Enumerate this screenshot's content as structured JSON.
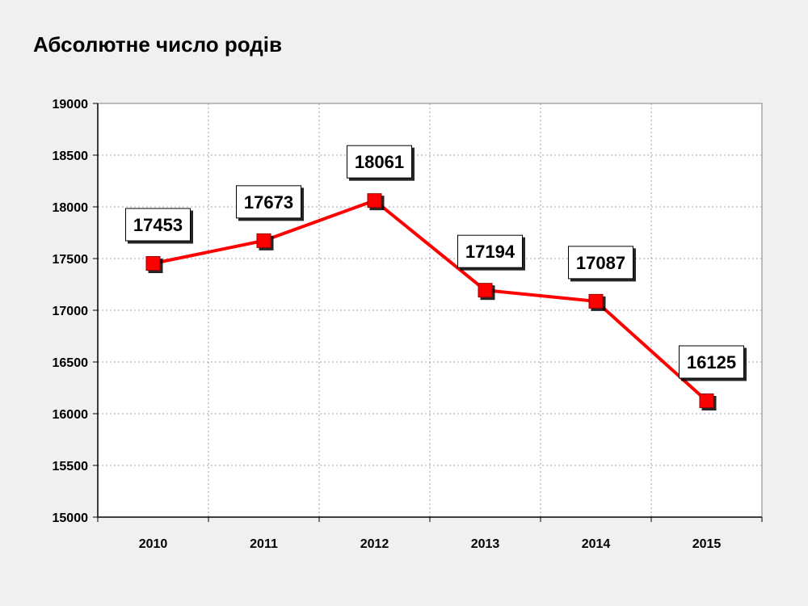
{
  "slide": {
    "title": "Абсолютне число родів"
  },
  "colors": {
    "background": "#f0f0f0",
    "plot_area": "#ffffff",
    "series_line": "#ff0000",
    "marker": "#ff0000",
    "grid": "#a0a0a0"
  },
  "chart_data": {
    "type": "line",
    "title": "Абсолютне число родів",
    "xlabel": "",
    "ylabel": "",
    "categories": [
      "2010",
      "2011",
      "2012",
      "2013",
      "2014",
      "2015"
    ],
    "series": [
      {
        "values": [
          17453,
          17673,
          18061,
          17194,
          17087,
          16125
        ]
      }
    ],
    "ylim": [
      15000,
      19000
    ],
    "y_ticks": [
      15000,
      15500,
      16000,
      16500,
      17000,
      17500,
      18000,
      18500,
      19000
    ],
    "grid": true,
    "grid_style": "dotted",
    "data_labels": true,
    "marker": "square",
    "legend": "none"
  }
}
